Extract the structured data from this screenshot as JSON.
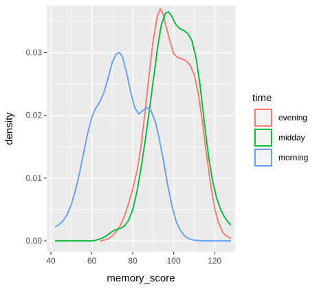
{
  "chart_data": {
    "type": "line",
    "title": "",
    "xlabel": "memory_score",
    "ylabel": "density",
    "xlim": [
      38,
      130
    ],
    "ylim": [
      -0.00175,
      0.0375
    ],
    "x_ticks": [
      40,
      60,
      80,
      100,
      120
    ],
    "y_ticks": [
      0.0,
      0.01,
      0.02,
      0.03
    ],
    "x_tick_labels": [
      "40",
      "60",
      "80",
      "100",
      "120"
    ],
    "y_tick_labels": [
      "0.00",
      "0.01",
      "0.02",
      "0.03"
    ],
    "grid": true,
    "background": "#ebebeb",
    "legend": {
      "title": "time",
      "position": "right"
    },
    "series": [
      {
        "name": "evening",
        "color": "#f8766d",
        "points": [
          [
            64,
            0
          ],
          [
            66,
            0.0001
          ],
          [
            68,
            0.0003
          ],
          [
            70,
            0.0008
          ],
          [
            72,
            0.0015
          ],
          [
            74,
            0.0025
          ],
          [
            76,
            0.004
          ],
          [
            78,
            0.006
          ],
          [
            80,
            0.0083
          ],
          [
            82,
            0.011
          ],
          [
            84,
            0.015
          ],
          [
            86,
            0.0205
          ],
          [
            88,
            0.0265
          ],
          [
            90,
            0.032
          ],
          [
            92,
            0.0358
          ],
          [
            93.5,
            0.037
          ],
          [
            95,
            0.036
          ],
          [
            96,
            0.0345
          ],
          [
            98,
            0.032
          ],
          [
            100,
            0.0298
          ],
          [
            102,
            0.0292
          ],
          [
            104,
            0.029
          ],
          [
            106,
            0.0287
          ],
          [
            108,
            0.028
          ],
          [
            110,
            0.0265
          ],
          [
            112,
            0.0235
          ],
          [
            114,
            0.019
          ],
          [
            116,
            0.0138
          ],
          [
            118,
            0.009
          ],
          [
            120,
            0.0052
          ],
          [
            122,
            0.0028
          ],
          [
            124,
            0.0013
          ],
          [
            126,
            0.0007
          ],
          [
            128,
            0.0004
          ]
        ]
      },
      {
        "name": "midday",
        "color": "#00ba38",
        "points": [
          [
            42,
            0
          ],
          [
            50,
            0
          ],
          [
            56,
            0
          ],
          [
            60,
            0
          ],
          [
            62,
            0.0001
          ],
          [
            64,
            0.0003
          ],
          [
            66,
            0.0006
          ],
          [
            68,
            0.001
          ],
          [
            70,
            0.0015
          ],
          [
            72,
            0.0018
          ],
          [
            74,
            0.002
          ],
          [
            76,
            0.0024
          ],
          [
            78,
            0.0033
          ],
          [
            80,
            0.005
          ],
          [
            82,
            0.0078
          ],
          [
            84,
            0.0115
          ],
          [
            86,
            0.0158
          ],
          [
            88,
            0.0205
          ],
          [
            90,
            0.0255
          ],
          [
            92,
            0.0305
          ],
          [
            94,
            0.0345
          ],
          [
            96,
            0.0363
          ],
          [
            97.5,
            0.0365
          ],
          [
            99,
            0.0358
          ],
          [
            101,
            0.0345
          ],
          [
            103,
            0.0338
          ],
          [
            105,
            0.0335
          ],
          [
            107,
            0.033
          ],
          [
            109,
            0.0318
          ],
          [
            111,
            0.029
          ],
          [
            113,
            0.0245
          ],
          [
            115,
            0.0188
          ],
          [
            117,
            0.0135
          ],
          [
            119,
            0.0095
          ],
          [
            121,
            0.0068
          ],
          [
            123,
            0.0049
          ],
          [
            125,
            0.0037
          ],
          [
            127,
            0.0028
          ],
          [
            128,
            0.0025
          ]
        ]
      },
      {
        "name": "morning",
        "color": "#619cff",
        "points": [
          [
            42,
            0.0022
          ],
          [
            44,
            0.0026
          ],
          [
            46,
            0.0032
          ],
          [
            48,
            0.0042
          ],
          [
            50,
            0.0058
          ],
          [
            52,
            0.008
          ],
          [
            54,
            0.0108
          ],
          [
            56,
            0.014
          ],
          [
            58,
            0.0172
          ],
          [
            60,
            0.0197
          ],
          [
            62,
            0.0212
          ],
          [
            64,
            0.0222
          ],
          [
            66,
            0.0237
          ],
          [
            68,
            0.026
          ],
          [
            70,
            0.0285
          ],
          [
            72,
            0.0298
          ],
          [
            73.5,
            0.03
          ],
          [
            75,
            0.0293
          ],
          [
            77,
            0.0268
          ],
          [
            79,
            0.0237
          ],
          [
            81,
            0.0212
          ],
          [
            83,
            0.0202
          ],
          [
            85,
            0.0208
          ],
          [
            87,
            0.0212
          ],
          [
            89,
            0.0207
          ],
          [
            91,
            0.019
          ],
          [
            93,
            0.0162
          ],
          [
            95,
            0.0128
          ],
          [
            97,
            0.009
          ],
          [
            99,
            0.0058
          ],
          [
            101,
            0.0033
          ],
          [
            103,
            0.0018
          ],
          [
            105,
            0.0009
          ],
          [
            107,
            0.0004
          ],
          [
            110,
            0.0001
          ],
          [
            114,
            0
          ],
          [
            120,
            0
          ],
          [
            128,
            0
          ]
        ]
      }
    ]
  }
}
